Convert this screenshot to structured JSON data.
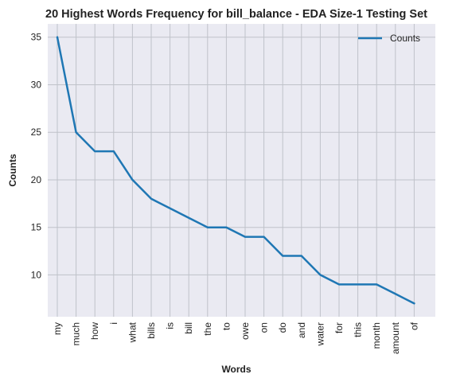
{
  "chart_data": {
    "type": "line",
    "title": "20 Highest Words Frequency for bill_balance - EDA Size-1 Testing Set",
    "xlabel": "Words",
    "ylabel": "Counts",
    "categories": [
      "my",
      "much",
      "how",
      "i",
      "what",
      "bills",
      "is",
      "bill",
      "the",
      "to",
      "owe",
      "on",
      "do",
      "and",
      "water",
      "for",
      "this",
      "month",
      "amount",
      "of"
    ],
    "series": [
      {
        "name": "Counts",
        "values": [
          35,
          25,
          23,
          23,
          20,
          18,
          17,
          16,
          15,
          15,
          14,
          14,
          12,
          12,
          10,
          9,
          9,
          9,
          8,
          7
        ],
        "color": "#1f77b4"
      }
    ],
    "yticks": [
      "10",
      "15",
      "20",
      "25",
      "30",
      "35"
    ],
    "ylim": [
      5.6,
      36.4
    ],
    "grid": true,
    "legend_position": "top-right",
    "plot_background": "#eaeaf2",
    "grid_color": "#bfc2c9"
  }
}
